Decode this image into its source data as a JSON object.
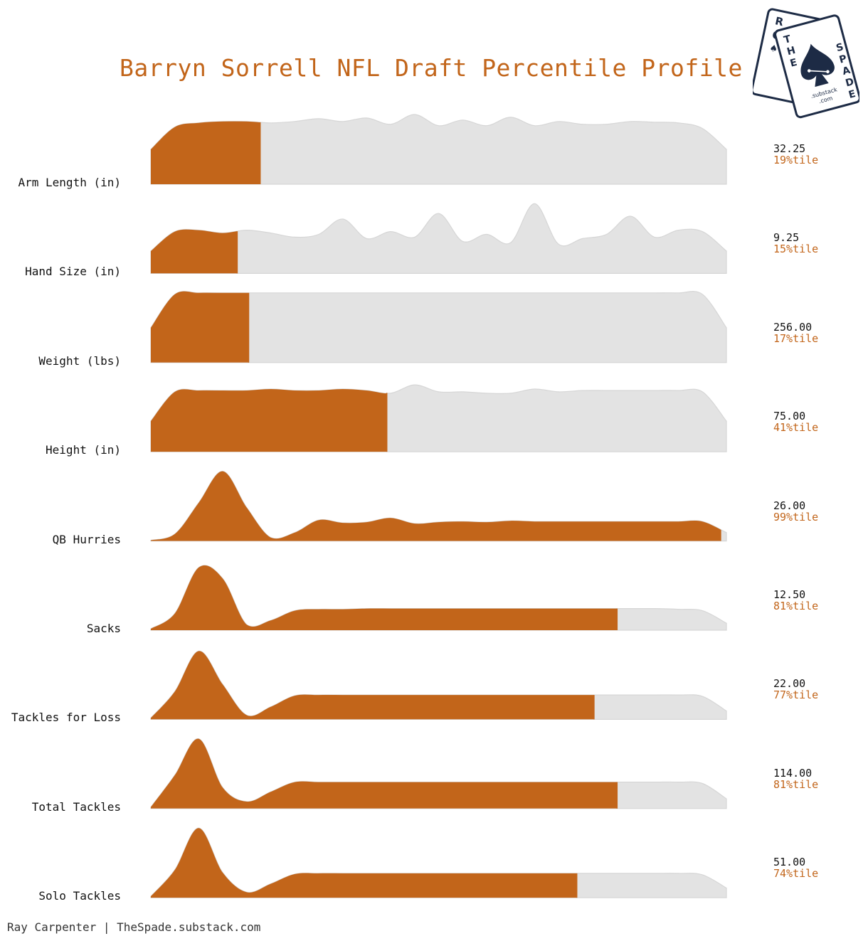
{
  "chart_data": {
    "type": "area",
    "title": "Barryn Sorrell NFL Draft Percentile Profile",
    "colors": {
      "highlight": "#c2651a",
      "background": "#e3e3e3",
      "background_stroke": "#d6d6d6"
    },
    "metrics": [
      {
        "label": "Arm Length (in)",
        "value": "32.25",
        "percentile_label": "19%tile",
        "percentile": 19,
        "peak_percentile": null,
        "density": [
          0.5,
          0.82,
          0.88,
          0.9,
          0.9,
          0.88,
          0.9,
          0.94,
          0.9,
          0.95,
          0.86,
          1.0,
          0.84,
          0.92,
          0.84,
          0.96,
          0.84,
          0.9,
          0.86,
          0.86,
          0.9,
          0.89,
          0.88,
          0.8,
          0.5
        ]
      },
      {
        "label": "Hand Size (in)",
        "value": "9.25",
        "percentile_label": "15%tile",
        "percentile": 15,
        "peak_percentile": null,
        "density": [
          0.32,
          0.6,
          0.62,
          0.58,
          0.62,
          0.58,
          0.52,
          0.56,
          0.78,
          0.5,
          0.6,
          0.52,
          0.86,
          0.46,
          0.56,
          0.44,
          1.0,
          0.42,
          0.5,
          0.56,
          0.82,
          0.52,
          0.62,
          0.6,
          0.32
        ]
      },
      {
        "label": "Weight (lbs)",
        "value": "256.00",
        "percentile_label": "17%tile",
        "percentile": 17,
        "peak_percentile": null,
        "density": [
          0.5,
          0.98,
          1.0,
          1.0,
          1.0,
          1.0,
          1.0,
          1.0,
          1.0,
          1.0,
          1.0,
          1.0,
          1.0,
          1.0,
          1.0,
          1.0,
          1.0,
          1.0,
          1.0,
          1.0,
          1.0,
          1.0,
          1.0,
          0.98,
          0.5
        ]
      },
      {
        "label": "Height (in)",
        "value": "75.00",
        "percentile_label": "41%tile",
        "percentile": 41,
        "peak_percentile": 40,
        "density": [
          0.44,
          0.86,
          0.88,
          0.88,
          0.88,
          0.9,
          0.88,
          0.88,
          0.9,
          0.88,
          0.84,
          0.96,
          0.86,
          0.86,
          0.84,
          0.84,
          0.9,
          0.86,
          0.88,
          0.88,
          0.88,
          0.88,
          0.88,
          0.86,
          0.44
        ]
      },
      {
        "label": "QB Hurries",
        "value": "26.00",
        "percentile_label": "99%tile",
        "percentile": 99,
        "peak_percentile": null,
        "density": [
          0.01,
          0.1,
          0.55,
          1.0,
          0.48,
          0.05,
          0.12,
          0.3,
          0.26,
          0.27,
          0.33,
          0.25,
          0.27,
          0.28,
          0.27,
          0.29,
          0.28,
          0.28,
          0.28,
          0.28,
          0.28,
          0.28,
          0.28,
          0.28,
          0.12
        ]
      },
      {
        "label": "Sacks",
        "value": "12.50",
        "percentile_label": "81%tile",
        "percentile": 81,
        "peak_percentile": null,
        "density": [
          0.02,
          0.24,
          0.9,
          0.74,
          0.08,
          0.14,
          0.28,
          0.3,
          0.3,
          0.31,
          0.31,
          0.31,
          0.31,
          0.31,
          0.31,
          0.31,
          0.31,
          0.31,
          0.31,
          0.31,
          0.31,
          0.31,
          0.3,
          0.28,
          0.1
        ]
      },
      {
        "label": "Tackles for Loss",
        "value": "22.00",
        "percentile_label": "77%tile",
        "percentile": 77,
        "peak_percentile": null,
        "density": [
          0.02,
          0.4,
          0.98,
          0.5,
          0.06,
          0.18,
          0.34,
          0.35,
          0.35,
          0.35,
          0.35,
          0.35,
          0.35,
          0.35,
          0.35,
          0.35,
          0.35,
          0.35,
          0.35,
          0.35,
          0.35,
          0.35,
          0.35,
          0.33,
          0.12
        ]
      },
      {
        "label": "Total Tackles",
        "value": "114.00",
        "percentile_label": "81%tile",
        "percentile": 81,
        "peak_percentile": null,
        "density": [
          0.02,
          0.48,
          1.0,
          0.3,
          0.1,
          0.24,
          0.38,
          0.38,
          0.38,
          0.38,
          0.38,
          0.38,
          0.38,
          0.38,
          0.38,
          0.38,
          0.38,
          0.38,
          0.38,
          0.38,
          0.38,
          0.38,
          0.38,
          0.36,
          0.14
        ]
      },
      {
        "label": "Solo Tackles",
        "value": "51.00",
        "percentile_label": "74%tile",
        "percentile": 74,
        "peak_percentile": null,
        "density": [
          0.02,
          0.4,
          1.0,
          0.36,
          0.08,
          0.2,
          0.34,
          0.35,
          0.35,
          0.35,
          0.35,
          0.35,
          0.35,
          0.35,
          0.35,
          0.35,
          0.35,
          0.35,
          0.35,
          0.35,
          0.35,
          0.35,
          0.35,
          0.33,
          0.14
        ]
      }
    ]
  },
  "logo": {
    "back_card_letters": [
      "R",
      "C",
      "♠"
    ],
    "front_card_letters_left": [
      "T",
      "H",
      "E"
    ],
    "front_card_letters_right": [
      "S",
      "P",
      "A",
      "D",
      "E"
    ],
    "url_line1": ".substack",
    "url_line2": ".com"
  },
  "footer": {
    "credit": "Ray Carpenter | TheSpade.substack.com"
  }
}
